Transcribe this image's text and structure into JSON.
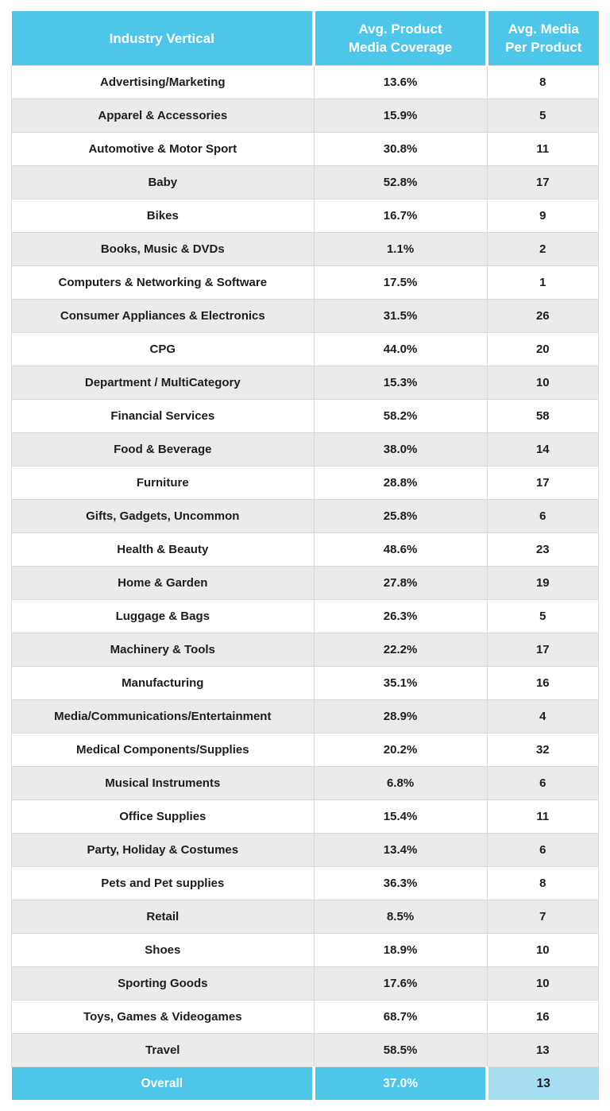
{
  "colors": {
    "accent": "#4ec6ea",
    "accent_light": "#a5ddf0",
    "row_alt": "#ebebeb",
    "grid": "#d9d9d9",
    "text": "#1d1d1f"
  },
  "table": {
    "header_lines": [
      [
        "Industry Vertical"
      ],
      [
        "Avg. Product",
        "Media Coverage"
      ],
      [
        "Avg. Media",
        "Per Product"
      ]
    ]
  },
  "chart_data": {
    "type": "table",
    "columns": [
      "Industry Vertical",
      "Avg. Product Media Coverage",
      "Avg. Media Per Product"
    ],
    "rows": [
      [
        "Advertising/Marketing",
        "13.6%",
        "8"
      ],
      [
        "Apparel & Accessories",
        "15.9%",
        "5"
      ],
      [
        "Automotive & Motor Sport",
        "30.8%",
        "11"
      ],
      [
        "Baby",
        "52.8%",
        "17"
      ],
      [
        "Bikes",
        "16.7%",
        "9"
      ],
      [
        "Books, Music & DVDs",
        "1.1%",
        "2"
      ],
      [
        "Computers & Networking & Software",
        "17.5%",
        "1"
      ],
      [
        "Consumer Appliances & Electronics",
        "31.5%",
        "26"
      ],
      [
        "CPG",
        "44.0%",
        "20"
      ],
      [
        "Department / MultiCategory",
        "15.3%",
        "10"
      ],
      [
        "Financial Services",
        "58.2%",
        "58"
      ],
      [
        "Food & Beverage",
        "38.0%",
        "14"
      ],
      [
        "Furniture",
        "28.8%",
        "17"
      ],
      [
        "Gifts, Gadgets, Uncommon",
        "25.8%",
        "6"
      ],
      [
        "Health & Beauty",
        "48.6%",
        "23"
      ],
      [
        "Home & Garden",
        "27.8%",
        "19"
      ],
      [
        "Luggage & Bags",
        "26.3%",
        "5"
      ],
      [
        "Machinery & Tools",
        "22.2%",
        "17"
      ],
      [
        "Manufacturing",
        "35.1%",
        "16"
      ],
      [
        "Media/Communications/Entertainment",
        "28.9%",
        "4"
      ],
      [
        "Medical Components/Supplies",
        "20.2%",
        "32"
      ],
      [
        "Musical Instruments",
        "6.8%",
        "6"
      ],
      [
        "Office Supplies",
        "15.4%",
        "11"
      ],
      [
        "Party, Holiday & Costumes",
        "13.4%",
        "6"
      ],
      [
        "Pets and Pet supplies",
        "36.3%",
        "8"
      ],
      [
        "Retail",
        "8.5%",
        "7"
      ],
      [
        "Shoes",
        "18.9%",
        "10"
      ],
      [
        "Sporting Goods",
        "17.6%",
        "10"
      ],
      [
        "Toys, Games & Videogames",
        "68.7%",
        "16"
      ],
      [
        "Travel",
        "58.5%",
        "13"
      ]
    ],
    "footer": {
      "label": "Overall",
      "coverage": "37.0%",
      "media": "13"
    }
  }
}
